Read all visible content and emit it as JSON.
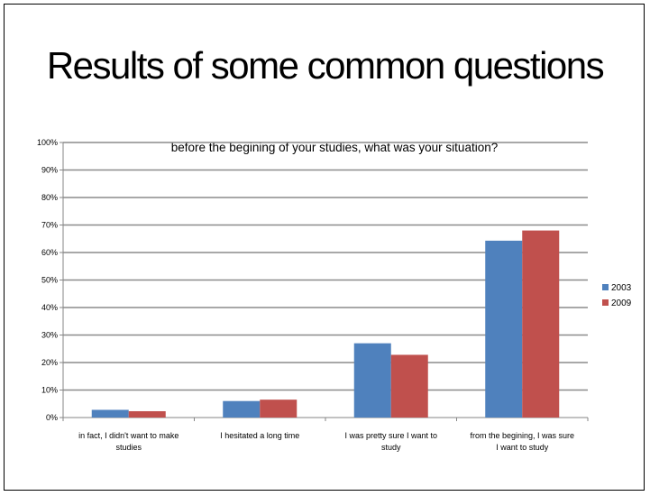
{
  "slide": {
    "title": "Results of some common questions"
  },
  "chart_data": {
    "type": "bar",
    "title": "before the begining of your studies, what was your situation?",
    "categories": [
      [
        "in fact, I didn't want to make",
        "studies"
      ],
      [
        "I hesitated a long time"
      ],
      [
        "I was pretty sure I want to",
        "study"
      ],
      [
        "from the begining, I was sure",
        "I want to study"
      ]
    ],
    "series": [
      {
        "name": "2003",
        "color": "#4f81bd",
        "values": [
          2.8,
          6.0,
          27.0,
          64.3
        ]
      },
      {
        "name": "2009",
        "color": "#c0504d",
        "values": [
          2.3,
          6.5,
          22.8,
          68.0
        ]
      }
    ],
    "ylim": [
      0,
      100
    ],
    "yticks": [
      "0%",
      "10%",
      "20%",
      "30%",
      "40%",
      "50%",
      "60%",
      "70%",
      "80%",
      "90%",
      "100%"
    ],
    "grid": true,
    "legend": "right"
  }
}
